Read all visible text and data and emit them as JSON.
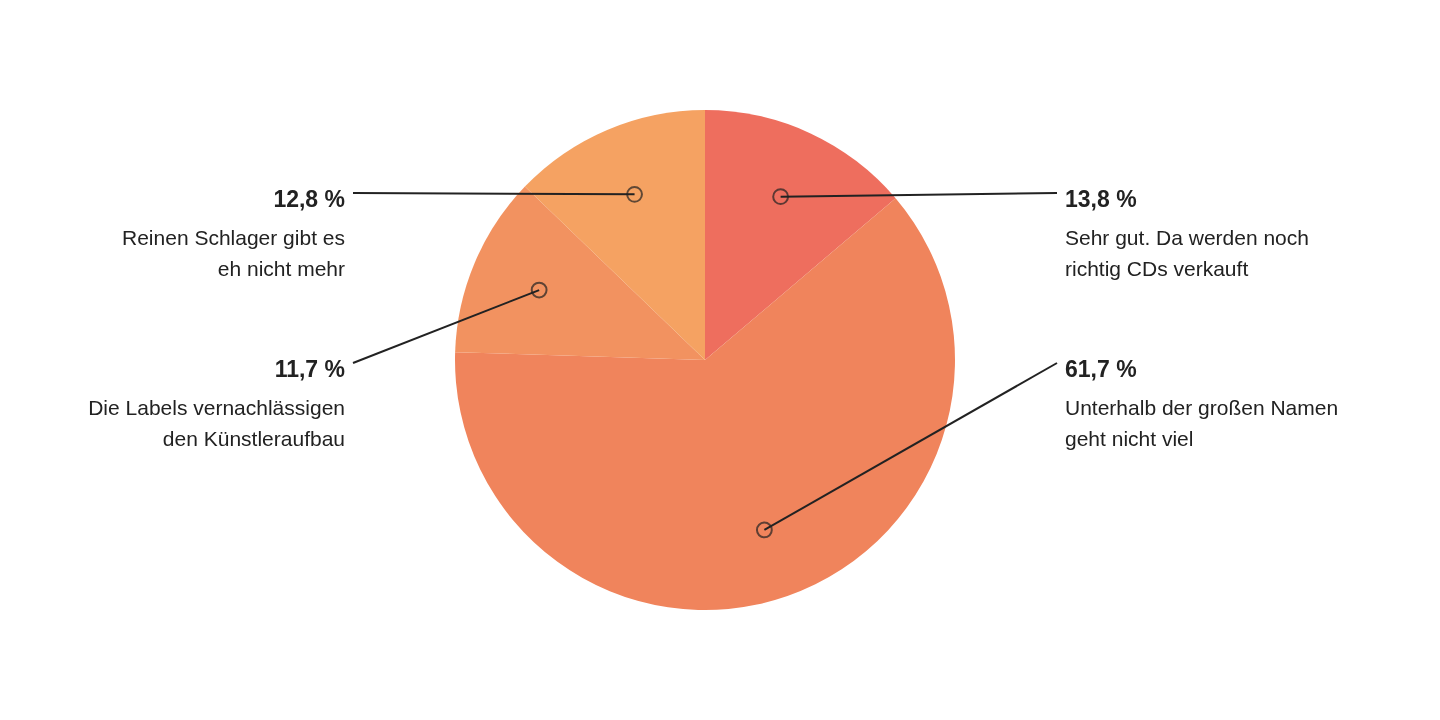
{
  "chart_data": {
    "type": "pie",
    "categories": [
      "Sehr gut. Da werden noch\nrichtig CDs verkauft",
      "Unterhalb der großen Namen\ngeht nicht viel",
      "Die Labels vernachlässigen\nden Künstleraufbau",
      "Reinen Schlager gibt es\neh nicht mehr"
    ],
    "values": [
      13.8,
      61.7,
      11.7,
      12.8
    ],
    "value_labels": [
      "13,8 %",
      "61,7 %",
      "11,7 %",
      "12,8 %"
    ],
    "colors": [
      "#ee6e5e",
      "#f0845c",
      "#f29260",
      "#f5a262"
    ]
  }
}
